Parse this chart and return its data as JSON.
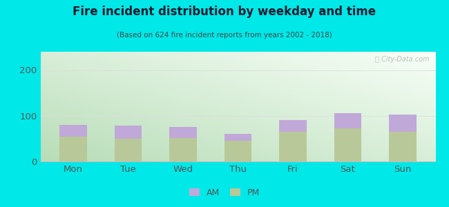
{
  "title": "Fire incident distribution by weekday and time",
  "subtitle": "(Based on 624 fire incident reports from years 2002 - 2018)",
  "categories": [
    "Mon",
    "Tue",
    "Wed",
    "Thu",
    "Fri",
    "Sat",
    "Sun"
  ],
  "pm_values": [
    55,
    50,
    52,
    45,
    65,
    72,
    65
  ],
  "am_values": [
    25,
    28,
    23,
    15,
    25,
    33,
    38
  ],
  "am_color": "#c0a8d8",
  "pm_color": "#b8c898",
  "background_color": "#00e8e8",
  "plot_bg_top_left": "#b8ddb8",
  "plot_bg_bottom_right": "#f8fff8",
  "ylim": [
    0,
    240
  ],
  "yticks": [
    0,
    100,
    200
  ],
  "bar_width": 0.5,
  "legend_am": "AM",
  "legend_pm": "PM",
  "title_color": "#1a1a2e",
  "subtitle_color": "#444444",
  "tick_color": "#555555",
  "grid_color": "#dddddd",
  "watermark": "Ⓜ City-Data.com"
}
